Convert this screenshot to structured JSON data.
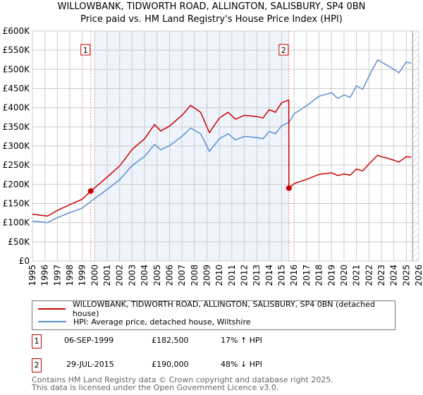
{
  "chart_data": {
    "type": "line",
    "title": "WILLOWBANK, TIDWORTH ROAD, ALLINGTON, SALISBURY, SP4 0BN",
    "subtitle": "Price paid vs. HM Land Registry's House Price Index (HPI)",
    "xlim": [
      1995,
      2026
    ],
    "ylim": [
      0,
      600000
    ],
    "x_ticks": [
      "1995",
      "1996",
      "1997",
      "1998",
      "1999",
      "2000",
      "2001",
      "2002",
      "2003",
      "2004",
      "2005",
      "2006",
      "2007",
      "2008",
      "2009",
      "2010",
      "2011",
      "2012",
      "2013",
      "2014",
      "2015",
      "2016",
      "2017",
      "2018",
      "2019",
      "2020",
      "2021",
      "2022",
      "2023",
      "2024",
      "2025",
      "2026"
    ],
    "y_ticks": [
      {
        "v": 0,
        "label": "£0"
      },
      {
        "v": 50000,
        "label": "£50K"
      },
      {
        "v": 100000,
        "label": "£100K"
      },
      {
        "v": 150000,
        "label": "£150K"
      },
      {
        "v": 200000,
        "label": "£200K"
      },
      {
        "v": 250000,
        "label": "£250K"
      },
      {
        "v": 300000,
        "label": "£300K"
      },
      {
        "v": 350000,
        "label": "£350K"
      },
      {
        "v": 400000,
        "label": "£400K"
      },
      {
        "v": 450000,
        "label": "£450K"
      },
      {
        "v": 500000,
        "label": "£500K"
      },
      {
        "v": 550000,
        "label": "£550K"
      },
      {
        "v": 600000,
        "label": "£600K"
      }
    ],
    "grid": true,
    "series": [
      {
        "name": "WILLOWBANK, TIDWORTH ROAD, ALLINGTON, SALISBURY, SP4 0BN (detached house)",
        "color": "#cc0000",
        "x": [
          1995,
          1996,
          1996.2,
          1997,
          1998,
          1999,
          1999.68,
          2000,
          2001,
          2002,
          2003,
          2004,
          2004.8,
          2005.3,
          2006,
          2007,
          2007.7,
          2008.5,
          2009.2,
          2010,
          2010.7,
          2011.3,
          2012,
          2013,
          2013.5,
          2014,
          2014.5,
          2015,
          2015.57,
          2015.58,
          2016,
          2017,
          2018,
          2019,
          2019.5,
          2020,
          2020.5,
          2021,
          2021.5,
          2022,
          2022.7,
          2023,
          2023.5,
          2024,
          2024.4,
          2025,
          2025.4
        ],
        "y": [
          122000,
          118000,
          117000,
          132000,
          147000,
          161000,
          182500,
          191000,
          219000,
          248000,
          291000,
          319000,
          356000,
          339000,
          352000,
          380000,
          406000,
          388000,
          335000,
          373000,
          388000,
          370000,
          380000,
          377000,
          373000,
          395000,
          388000,
          413000,
          420000,
          190000,
          202000,
          213000,
          226000,
          230000,
          223000,
          227000,
          224000,
          240000,
          235000,
          253000,
          276000,
          272000,
          268000,
          263000,
          258000,
          272000,
          271000
        ]
      },
      {
        "name": "HPI: Average price, detached house, Wiltshire",
        "color": "#5b8fd0",
        "x": [
          1995,
          1996,
          1996.2,
          1997,
          1998,
          1999,
          1999.68,
          2000,
          2001,
          2002,
          2003,
          2004,
          2004.8,
          2005.3,
          2006,
          2007,
          2007.7,
          2008.5,
          2009.2,
          2010,
          2010.7,
          2011.3,
          2012,
          2013,
          2013.5,
          2014,
          2014.5,
          2015,
          2015.6,
          2016,
          2017,
          2018,
          2019,
          2019.5,
          2020,
          2020.5,
          2021,
          2021.5,
          2022,
          2022.7,
          2023,
          2023.5,
          2024,
          2024.4,
          2025,
          2025.4
        ],
        "y": [
          104000,
          101000,
          100000,
          113000,
          126000,
          138000,
          155000,
          163000,
          187000,
          212000,
          249000,
          273000,
          304000,
          290000,
          301000,
          325000,
          347000,
          332000,
          286000,
          319000,
          332000,
          316000,
          325000,
          322000,
          319000,
          338000,
          332000,
          353000,
          362000,
          384000,
          405000,
          430000,
          439000,
          424000,
          433000,
          427000,
          457000,
          448000,
          482000,
          525000,
          519000,
          510000,
          500000,
          491000,
          519000,
          516000
        ]
      }
    ],
    "shaded_range": [
      2000,
      2015.58
    ],
    "hatched_from": 2025.5,
    "sales": [
      {
        "label": "1",
        "x": 1999.68,
        "y": 182500
      },
      {
        "label": "2",
        "x": 2015.58,
        "y": 190000
      }
    ]
  },
  "legend": {
    "red": "WILLOWBANK, TIDWORTH ROAD, ALLINGTON, SALISBURY, SP4 0BN (detached house)",
    "blue": "HPI: Average price, detached house, Wiltshire"
  },
  "transactions": [
    {
      "num": "1",
      "date": "06-SEP-1999",
      "price": "£182,500",
      "hpi": "17% ↑ HPI"
    },
    {
      "num": "2",
      "date": "29-JUL-2015",
      "price": "£190,000",
      "hpi": "48% ↓ HPI"
    }
  ],
  "footer": {
    "line1": "Contains HM Land Registry data © Crown copyright and database right 2025.",
    "line2": "This data is licensed under the Open Government Licence v3.0."
  }
}
